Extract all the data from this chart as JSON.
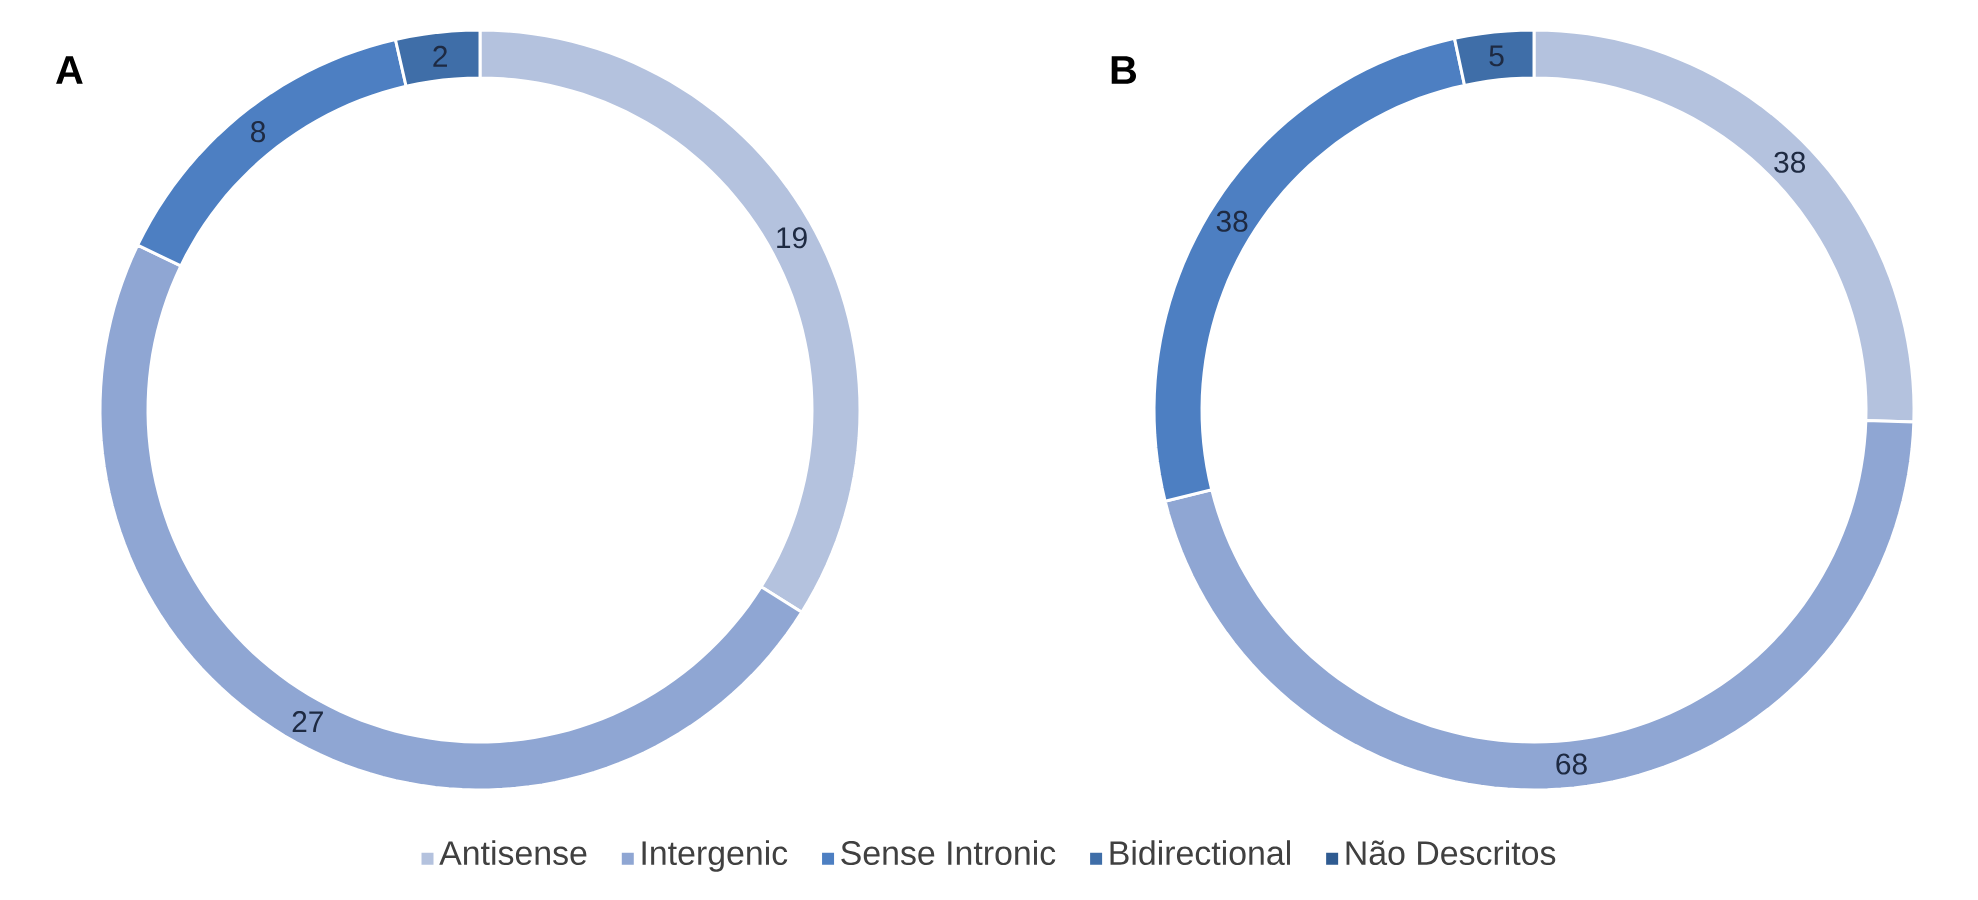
{
  "chart_data": [
    {
      "type": "donut",
      "title": "A",
      "categories": [
        "Antisense",
        "Intergenic",
        "Sense Intronic",
        "Bidirectional",
        "Não Descritos"
      ],
      "values": [
        19,
        27,
        8,
        2,
        0
      ],
      "value_labels": [
        "19",
        "27",
        "8",
        "2",
        null
      ],
      "colors": [
        "#b4c2de",
        "#8fa6d3",
        "#4d7fc2",
        "#3f6ea8",
        "#2f5b91"
      ],
      "legend": "bottom"
    },
    {
      "type": "donut",
      "title": "B",
      "categories": [
        null,
        null,
        null,
        null,
        null
      ],
      "values": [
        38,
        68,
        38,
        5,
        0
      ],
      "value_labels": [
        "38",
        "68",
        "38",
        "5",
        null
      ],
      "colors": [
        "#b4c2de",
        "#8fa6d3",
        "#4d7fc2",
        "#3f6ea8",
        "#2f5b91"
      ]
    }
  ]
}
